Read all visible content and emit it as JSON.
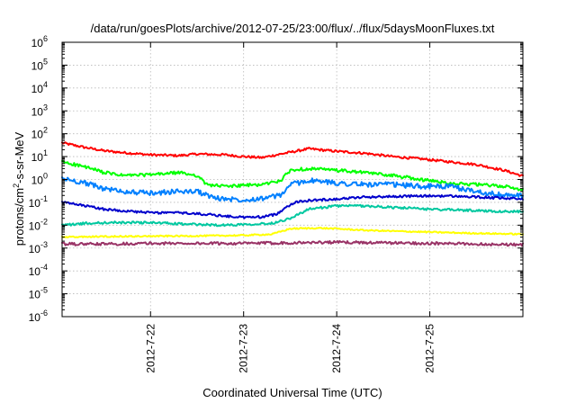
{
  "chart_data": {
    "type": "line",
    "title": "/data/run/goesPlots/archive/2012-07-25/23:00/flux/../flux/5daysMoonFluxes.txt",
    "xlabel": "Coordinated Universal Time (UTC)",
    "ylabel_prefix": "protons/cm",
    "ylabel_exp": "2",
    "ylabel_suffix": "-s-sr-MeV",
    "xlim": [
      21.05,
      26.0
    ],
    "ylim": [
      -6,
      6
    ],
    "yscale": "log",
    "grid": true,
    "x_ticks": [
      {
        "value": 22,
        "label": "2012-7-22"
      },
      {
        "value": 23,
        "label": "2012-7-23"
      },
      {
        "value": 24,
        "label": "2012-7-24"
      },
      {
        "value": 25,
        "label": "2012-7-25"
      }
    ],
    "y_ticks": [
      {
        "value": -6,
        "base": "10",
        "exp": "-6"
      },
      {
        "value": -5,
        "base": "10",
        "exp": "-5"
      },
      {
        "value": -4,
        "base": "10",
        "exp": "-4"
      },
      {
        "value": -3,
        "base": "10",
        "exp": "-3"
      },
      {
        "value": -2,
        "base": "10",
        "exp": "-2"
      },
      {
        "value": -1,
        "base": "10",
        "exp": "-1"
      },
      {
        "value": 0,
        "base": "10",
        "exp": "0"
      },
      {
        "value": 1,
        "base": "10",
        "exp": "1"
      },
      {
        "value": 2,
        "base": "10",
        "exp": "2"
      },
      {
        "value": 3,
        "base": "10",
        "exp": "3"
      },
      {
        "value": 4,
        "base": "10",
        "exp": "4"
      },
      {
        "value": 5,
        "base": "10",
        "exp": "5"
      },
      {
        "value": 6,
        "base": "10",
        "exp": "6"
      }
    ],
    "series": [
      {
        "color": "#ff0000",
        "x": [
          21.05,
          21.3,
          21.5,
          21.7,
          22.0,
          22.3,
          22.5,
          22.8,
          23.0,
          23.2,
          23.4,
          23.7,
          24.0,
          24.3,
          24.6,
          24.9,
          25.2,
          25.5,
          25.8,
          26.0
        ],
        "y": [
          40,
          25,
          18,
          15,
          12,
          11,
          13,
          12,
          10,
          9,
          13,
          22,
          17,
          14,
          10,
          8,
          6,
          4.5,
          2.5,
          1.4
        ]
      },
      {
        "color": "#00ff00",
        "x": [
          21.05,
          21.3,
          21.5,
          21.7,
          22.0,
          22.3,
          22.5,
          22.6,
          22.8,
          23.0,
          23.2,
          23.4,
          23.5,
          23.7,
          24.0,
          24.3,
          24.6,
          24.9,
          25.2,
          25.5,
          25.8,
          26.0
        ],
        "y": [
          6,
          3.5,
          2,
          1.5,
          1.6,
          2,
          1.5,
          0.6,
          0.5,
          0.55,
          0.6,
          0.9,
          2.5,
          3,
          2.5,
          2,
          1.5,
          1,
          0.7,
          0.6,
          0.5,
          0.35
        ]
      },
      {
        "color": "#0080ff",
        "x": [
          21.05,
          21.3,
          21.5,
          21.7,
          22.0,
          22.3,
          22.5,
          22.7,
          23.0,
          23.2,
          23.4,
          23.5,
          23.7,
          24.0,
          24.3,
          24.6,
          24.9,
          25.2,
          25.5,
          25.8,
          26.0
        ],
        "y": [
          1.1,
          0.7,
          0.4,
          0.3,
          0.25,
          0.3,
          0.3,
          0.15,
          0.13,
          0.15,
          0.2,
          0.6,
          0.9,
          0.7,
          0.6,
          0.6,
          0.5,
          0.5,
          0.3,
          0.2,
          0.2
        ]
      },
      {
        "color": "#0000cc",
        "x": [
          21.05,
          21.3,
          21.5,
          21.8,
          22.0,
          22.3,
          22.6,
          22.8,
          23.0,
          23.2,
          23.35,
          23.45,
          23.55,
          23.7,
          24.0,
          24.3,
          24.6,
          24.9,
          25.2,
          25.5,
          25.8,
          26.0
        ],
        "y": [
          0.1,
          0.07,
          0.05,
          0.04,
          0.035,
          0.035,
          0.03,
          0.025,
          0.022,
          0.023,
          0.03,
          0.06,
          0.1,
          0.12,
          0.14,
          0.17,
          0.18,
          0.19,
          0.19,
          0.17,
          0.15,
          0.14
        ]
      },
      {
        "color": "#00c8a0",
        "x": [
          21.05,
          21.3,
          21.6,
          22.0,
          22.4,
          22.8,
          23.0,
          23.3,
          23.5,
          23.7,
          24.0,
          24.3,
          24.6,
          25.0,
          25.4,
          25.8,
          26.0
        ],
        "y": [
          0.01,
          0.012,
          0.013,
          0.013,
          0.011,
          0.01,
          0.011,
          0.012,
          0.02,
          0.05,
          0.07,
          0.07,
          0.06,
          0.05,
          0.045,
          0.04,
          0.04
        ]
      },
      {
        "color": "#ffff00",
        "x": [
          21.05,
          21.5,
          22.0,
          22.5,
          23.0,
          23.3,
          23.5,
          23.8,
          24.0,
          24.3,
          24.6,
          25.0,
          25.4,
          25.8,
          26.0
        ],
        "y": [
          0.003,
          0.0032,
          0.0033,
          0.0034,
          0.0036,
          0.004,
          0.007,
          0.0075,
          0.007,
          0.006,
          0.0055,
          0.005,
          0.0045,
          0.0042,
          0.004
        ]
      },
      {
        "color": "#993366",
        "x": [
          21.05,
          21.5,
          22.0,
          22.5,
          23.0,
          23.5,
          24.0,
          24.5,
          25.0,
          25.5,
          26.0
        ],
        "y": [
          0.0015,
          0.0015,
          0.0016,
          0.0016,
          0.0016,
          0.0017,
          0.0018,
          0.0017,
          0.0016,
          0.0015,
          0.0014
        ]
      }
    ]
  }
}
